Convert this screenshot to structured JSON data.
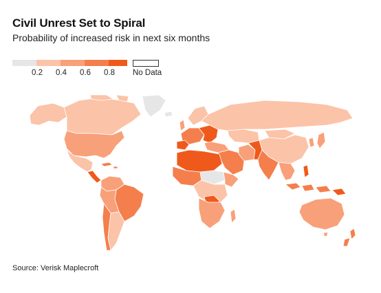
{
  "title": "Civil Unrest Set to Spiral",
  "subtitle": "Probability of increased risk in next six months",
  "legend": {
    "ticks": [
      "0.2",
      "0.4",
      "0.6",
      "0.8"
    ],
    "no_data_label": "No Data",
    "colors": [
      "#e6e6e6",
      "#fbc3a8",
      "#f8a079",
      "#f47f4c",
      "#ef5a1c"
    ]
  },
  "source": "Source: Verisk Maplecroft",
  "map": {
    "ocean_color": "#ffffff",
    "border_color": "#ffffff",
    "no_data_color": "#ffffff"
  }
}
